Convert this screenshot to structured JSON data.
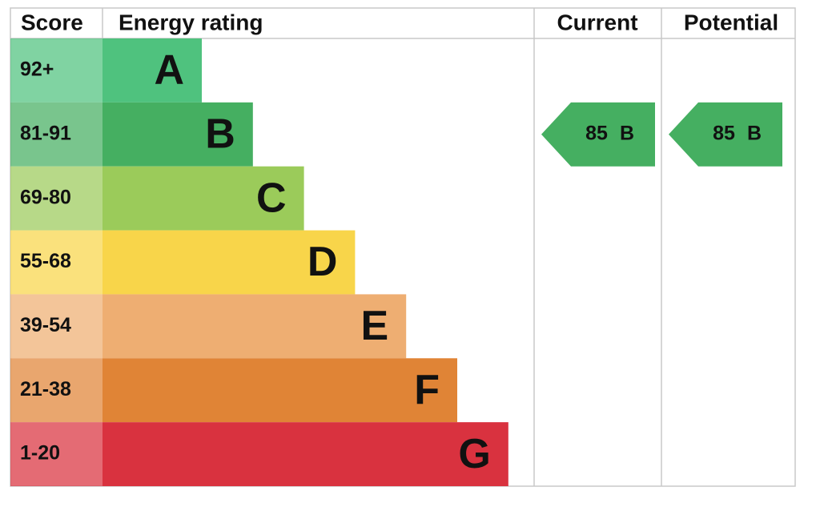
{
  "header": {
    "score": "Score",
    "energy_rating": "Energy rating",
    "current": "Current",
    "potential": "Potential"
  },
  "rows": [
    {
      "score": "92+",
      "rating": "A",
      "color": "#4fc27e"
    },
    {
      "score": "81-91",
      "rating": "B",
      "color": "#45af61"
    },
    {
      "score": "69-80",
      "rating": "C",
      "color": "#9bcb5a"
    },
    {
      "score": "55-68",
      "rating": "D",
      "color": "#f8d54a"
    },
    {
      "score": "39-54",
      "rating": "E",
      "color": "#eeae72"
    },
    {
      "score": "21-38",
      "rating": "F",
      "color": "#e08436"
    },
    {
      "score": "1-20",
      "rating": "G",
      "color": "#d9323f"
    }
  ],
  "current": {
    "score": 85,
    "rating": "B"
  },
  "potential": {
    "score": 85,
    "rating": "B"
  }
}
